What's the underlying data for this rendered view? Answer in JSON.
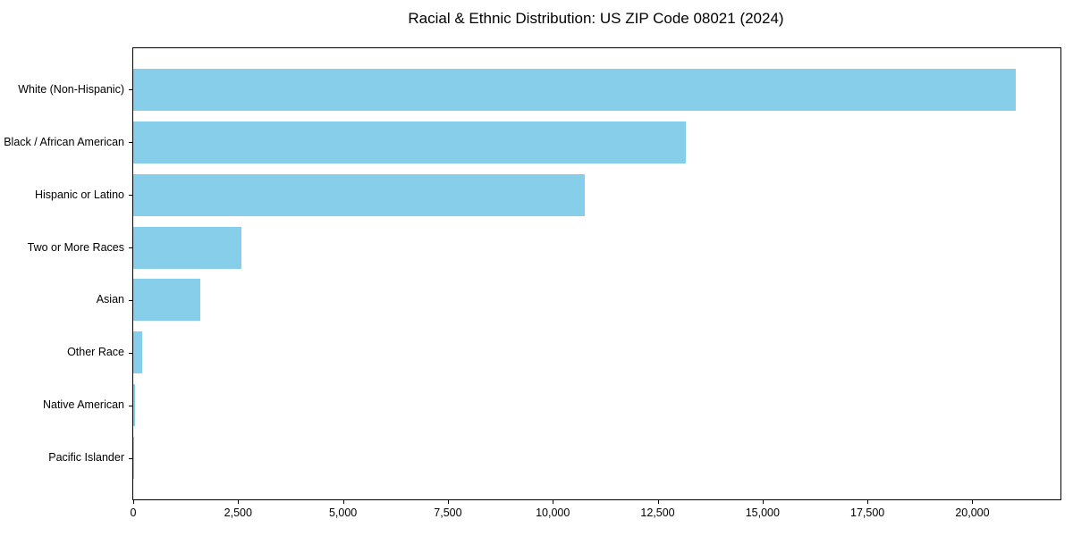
{
  "title": "Racial & Ethnic Distribution: US ZIP Code 08021 (2024)",
  "chart_data": {
    "type": "bar",
    "orientation": "horizontal",
    "title": "Racial & Ethnic Distribution: US ZIP Code 08021 (2024)",
    "categories": [
      "White (Non-Hispanic)",
      "Black / African American",
      "Hispanic or Latino",
      "Two or More Races",
      "Asian",
      "Other Race",
      "Native American",
      "Pacific Islander"
    ],
    "values": [
      21040,
      13180,
      10760,
      2580,
      1600,
      210,
      40,
      10
    ],
    "xlabel": "",
    "ylabel": "",
    "xlim": [
      0,
      22100
    ],
    "x_ticks": [
      0,
      2500,
      5000,
      7500,
      10000,
      12500,
      15000,
      17500,
      20000
    ],
    "x_tick_labels": [
      "0",
      "2,500",
      "5,000",
      "7,500",
      "10,000",
      "12,500",
      "15,000",
      "17,500",
      "20,000"
    ],
    "bar_color": "#87CEEB",
    "bar_height_fraction": 0.8,
    "grid": false,
    "legend": "none",
    "background_color": "#ffffff",
    "spine_color": "#000000"
  }
}
